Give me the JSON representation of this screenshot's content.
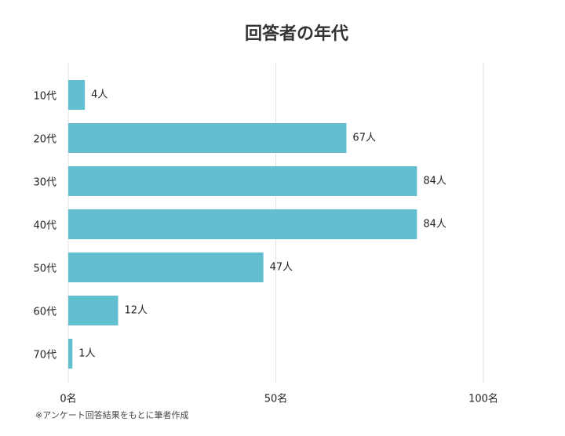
{
  "chart_data": {
    "type": "barh",
    "title": "回答者の年代",
    "categories": [
      "10代",
      "20代",
      "30代",
      "40代",
      "50代",
      "60代",
      "70代"
    ],
    "values": [
      4,
      67,
      84,
      84,
      47,
      12,
      1
    ],
    "value_labels": [
      "4人",
      "67人",
      "84人",
      "84人",
      "47人",
      "12人",
      "1人"
    ],
    "color": "#62bfcf",
    "xlim": [
      0,
      100
    ],
    "xticks": [
      {
        "value": 0,
        "label": "0名"
      },
      {
        "value": 50,
        "label": "50名"
      },
      {
        "value": 100,
        "label": "100名"
      }
    ],
    "grid": true,
    "note": "※アンケート回答結果をもとに筆者作成"
  }
}
